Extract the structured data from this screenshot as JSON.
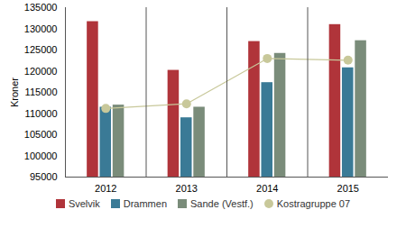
{
  "chart_data": {
    "type": "bar",
    "categories": [
      "2012",
      "2013",
      "2014",
      "2015"
    ],
    "y_label": "Kroner",
    "ylim": [
      95000,
      135000
    ],
    "yticks": [
      95000,
      100000,
      105000,
      110000,
      115000,
      120000,
      125000,
      130000,
      135000
    ],
    "grid": false,
    "legend": "bottom",
    "series": [
      {
        "name": "Svelvik",
        "color": "#b0343a",
        "type": "bar",
        "values": [
          131700,
          120200,
          127000,
          131000
        ]
      },
      {
        "name": "Drammen",
        "color": "#3a7a96",
        "type": "bar",
        "values": [
          111500,
          109000,
          117300,
          120800
        ]
      },
      {
        "name": "Sande (Vestf.)",
        "color": "#7a8c7a",
        "type": "bar",
        "values": [
          112000,
          111500,
          124200,
          127200
        ]
      },
      {
        "name": "Kostragruppe 07",
        "color": "#c8c89a",
        "type": "line",
        "marker": "circle",
        "values": [
          111200,
          112300,
          123000,
          122600
        ]
      }
    ]
  }
}
